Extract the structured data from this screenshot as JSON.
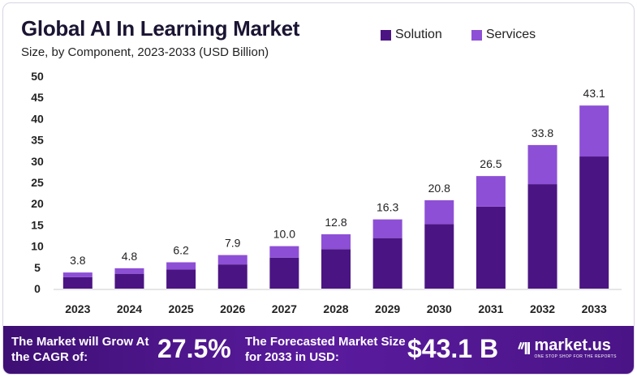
{
  "header": {
    "title": "Global AI In Learning Market",
    "subtitle": "Size, by Component, 2023-2033 (USD Billion)"
  },
  "legend": {
    "items": [
      {
        "label": "Solution",
        "color": "#4b1483"
      },
      {
        "label": "Services",
        "color": "#8d4fd6"
      }
    ]
  },
  "chart_data": {
    "type": "bar",
    "stacked": true,
    "categories": [
      "2023",
      "2024",
      "2025",
      "2026",
      "2027",
      "2028",
      "2029",
      "2030",
      "2031",
      "2032",
      "2033"
    ],
    "series": [
      {
        "name": "Solution",
        "color": "#4b1483",
        "values": [
          2.7,
          3.5,
          4.5,
          5.7,
          7.3,
          9.3,
          11.9,
          15.2,
          19.3,
          24.6,
          31.1
        ]
      },
      {
        "name": "Services",
        "color": "#8d4fd6",
        "values": [
          1.1,
          1.3,
          1.7,
          2.2,
          2.7,
          3.5,
          4.4,
          5.6,
          7.2,
          9.2,
          12.0
        ]
      }
    ],
    "totals": [
      3.8,
      4.8,
      6.2,
      7.9,
      10.0,
      12.8,
      16.3,
      20.8,
      26.5,
      33.8,
      43.1
    ],
    "total_labels": [
      "3.8",
      "4.8",
      "6.2",
      "7.9",
      "10.0",
      "12.8",
      "16.3",
      "20.8",
      "26.5",
      "33.8",
      "43.1"
    ],
    "yticks": [
      "0",
      "5",
      "10",
      "15",
      "20",
      "25",
      "30",
      "35",
      "40",
      "45",
      "50"
    ],
    "ylim": [
      0,
      50
    ],
    "grid": false,
    "legend_position": "top-right"
  },
  "banner": {
    "cagr_label": "The Market will Grow At the CAGR of:",
    "cagr_value": "27.5%",
    "forecast_label": "The Forecasted Market Size for 2033 in USD:",
    "forecast_value": "$43.1 B",
    "brand_name": "market.us",
    "brand_tagline": "ONE STOP SHOP FOR THE REPORTS"
  }
}
